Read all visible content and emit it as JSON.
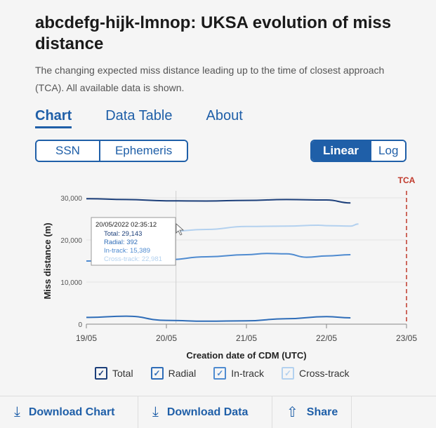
{
  "header": {
    "title": "abcdefg-hijk-lmnop: UKSA evolution of miss distance",
    "subtitle": "The changing expected miss distance leading up to the time of closest approach (TCA). All available data is shown."
  },
  "tabs": [
    {
      "label": "Chart",
      "active": true
    },
    {
      "label": "Data Table",
      "active": false
    },
    {
      "label": "About",
      "active": false
    }
  ],
  "source_toggle": {
    "options": [
      "SSN",
      "Ephemeris"
    ]
  },
  "scale_toggle": {
    "options": [
      "Linear",
      "Log"
    ],
    "selected": "Linear"
  },
  "chart_data": {
    "type": "line",
    "xlabel": "Creation date of CDM (UTC)",
    "ylabel": "Miss distance (m)",
    "xticks": [
      "19/05",
      "20/05",
      "21/05",
      "22/05",
      "23/05"
    ],
    "yticks": [
      "0",
      "10,000",
      "20,000",
      "30,000"
    ],
    "xlim": [
      0,
      4
    ],
    "ylim": [
      0,
      30000
    ],
    "tca_label": "TCA",
    "tca_x": 4,
    "colors": {
      "Total": "#1c3f7a",
      "Radial": "#2f6db8",
      "In-track": "#4f8bd0",
      "Cross-track": "#b3d1ef"
    },
    "series": [
      {
        "name": "Total",
        "x": [
          0,
          0.5,
          1,
          1.5,
          2,
          2.5,
          3,
          3.3
        ],
        "values": [
          29800,
          29600,
          29300,
          29250,
          29400,
          29600,
          29500,
          28800
        ]
      },
      {
        "name": "Radial",
        "x": [
          0,
          0.5,
          1,
          1.5,
          2,
          2.5,
          3,
          3.3
        ],
        "values": [
          1600,
          1900,
          900,
          700,
          800,
          1300,
          1800,
          1500
        ]
      },
      {
        "name": "In-track",
        "x": [
          0,
          0.5,
          1,
          1.5,
          2,
          2.25,
          2.5,
          2.75,
          3,
          3.3
        ],
        "values": [
          15000,
          15200,
          15300,
          16000,
          16500,
          16800,
          16700,
          15900,
          16200,
          16500
        ]
      },
      {
        "name": "Cross-track",
        "x": [
          1,
          1.5,
          2,
          2.5,
          2.9,
          3,
          3.3,
          3.4
        ],
        "values": [
          22000,
          22500,
          23200,
          23300,
          23500,
          23400,
          23300,
          23800
        ]
      }
    ],
    "hover_x": 1.12,
    "tooltip": {
      "date": "20/05/2022 02:35:12",
      "rows": [
        {
          "label": "Total: 29,143",
          "series": "Total"
        },
        {
          "label": "Radial: 392",
          "series": "Radial"
        },
        {
          "label": "In-track: 15,389",
          "series": "In-track"
        },
        {
          "label": "Cross-track: 22,981",
          "series": "Cross-track"
        }
      ]
    }
  },
  "legend": [
    {
      "label": "Total",
      "color": "#1c3f7a"
    },
    {
      "label": "Radial",
      "color": "#2f6db8"
    },
    {
      "label": "In-track",
      "color": "#4f8bd0"
    },
    {
      "label": "Cross-track",
      "color": "#b3d1ef"
    }
  ],
  "footer": {
    "download_chart": "Download Chart",
    "download_data": "Download Data",
    "share": "Share"
  }
}
